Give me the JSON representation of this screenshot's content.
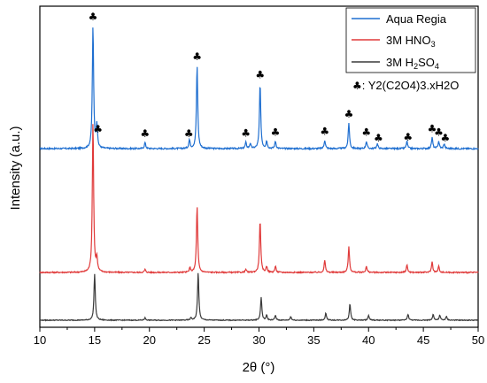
{
  "chart_data": {
    "type": "line",
    "xlabel": "2θ (°)",
    "ylabel": "Intensity (a.u.)",
    "xlim": [
      10,
      50
    ],
    "x_ticks": [
      "10",
      "15",
      "20",
      "25",
      "30",
      "35",
      "40",
      "45",
      "50"
    ],
    "y_ticks_shown": false,
    "grid": false,
    "legend": {
      "placement": "top-right",
      "entries": [
        {
          "series": "Aqua Regia",
          "label": "Aqua Regia",
          "sub": "",
          "tail": ""
        },
        {
          "series": "3M HNO3",
          "label": "3M HNO",
          "sub": "3",
          "tail": ""
        },
        {
          "series": "3M H2SO4",
          "label": "3M H",
          "sub": "2",
          "tail": "SO",
          "sub2": "4"
        }
      ],
      "annotation_symbol": "♣",
      "annotation_text": ": Y2(C2O4)3.xH2O"
    },
    "series": [
      {
        "name": "Aqua Regia",
        "color": "#1f6fd0",
        "baseline_rel": 0.0,
        "noise": 0.012,
        "peaks": [
          [
            14.85,
            1.0
          ],
          [
            15.2,
            0.19
          ],
          [
            19.6,
            0.05
          ],
          [
            23.65,
            0.07
          ],
          [
            24.35,
            0.68
          ],
          [
            28.8,
            0.05
          ],
          [
            29.2,
            0.04
          ],
          [
            30.1,
            0.53
          ],
          [
            30.7,
            0.06
          ],
          [
            31.5,
            0.06
          ],
          [
            36.0,
            0.07
          ],
          [
            38.2,
            0.21
          ],
          [
            39.8,
            0.06
          ],
          [
            40.8,
            0.04
          ],
          [
            43.5,
            0.06
          ],
          [
            45.8,
            0.09
          ],
          [
            46.4,
            0.06
          ],
          [
            46.9,
            0.04
          ]
        ],
        "markers_at": [
          14.85,
          15.3,
          19.6,
          23.6,
          24.35,
          28.8,
          30.1,
          31.5,
          36.0,
          38.2,
          39.8,
          40.9,
          43.6,
          45.8,
          46.4,
          47.0
        ]
      },
      {
        "name": "3M HNO3",
        "color": "#e03a3a",
        "baseline_rel": 0.0,
        "noise": 0.008,
        "peaks": [
          [
            14.85,
            1.0
          ],
          [
            15.2,
            0.09
          ],
          [
            19.6,
            0.02
          ],
          [
            23.7,
            0.03
          ],
          [
            24.35,
            0.44
          ],
          [
            28.8,
            0.02
          ],
          [
            30.1,
            0.35
          ],
          [
            30.7,
            0.04
          ],
          [
            31.5,
            0.04
          ],
          [
            36.0,
            0.08
          ],
          [
            38.2,
            0.17
          ],
          [
            39.8,
            0.04
          ],
          [
            43.5,
            0.05
          ],
          [
            45.8,
            0.07
          ],
          [
            46.4,
            0.04
          ]
        ],
        "markers_at": []
      },
      {
        "name": "3M H2SO4",
        "color": "#3a3a3a",
        "baseline_rel": 0.0,
        "noise": 0.007,
        "peaks": [
          [
            15.0,
            0.39
          ],
          [
            19.6,
            0.02
          ],
          [
            23.8,
            0.02
          ],
          [
            24.45,
            0.4
          ],
          [
            30.2,
            0.19
          ],
          [
            30.7,
            0.04
          ],
          [
            31.5,
            0.04
          ],
          [
            32.9,
            0.03
          ],
          [
            36.1,
            0.06
          ],
          [
            38.3,
            0.14
          ],
          [
            40.0,
            0.04
          ],
          [
            43.6,
            0.05
          ],
          [
            45.9,
            0.05
          ],
          [
            46.5,
            0.04
          ],
          [
            47.1,
            0.03
          ]
        ],
        "markers_at": []
      }
    ]
  }
}
